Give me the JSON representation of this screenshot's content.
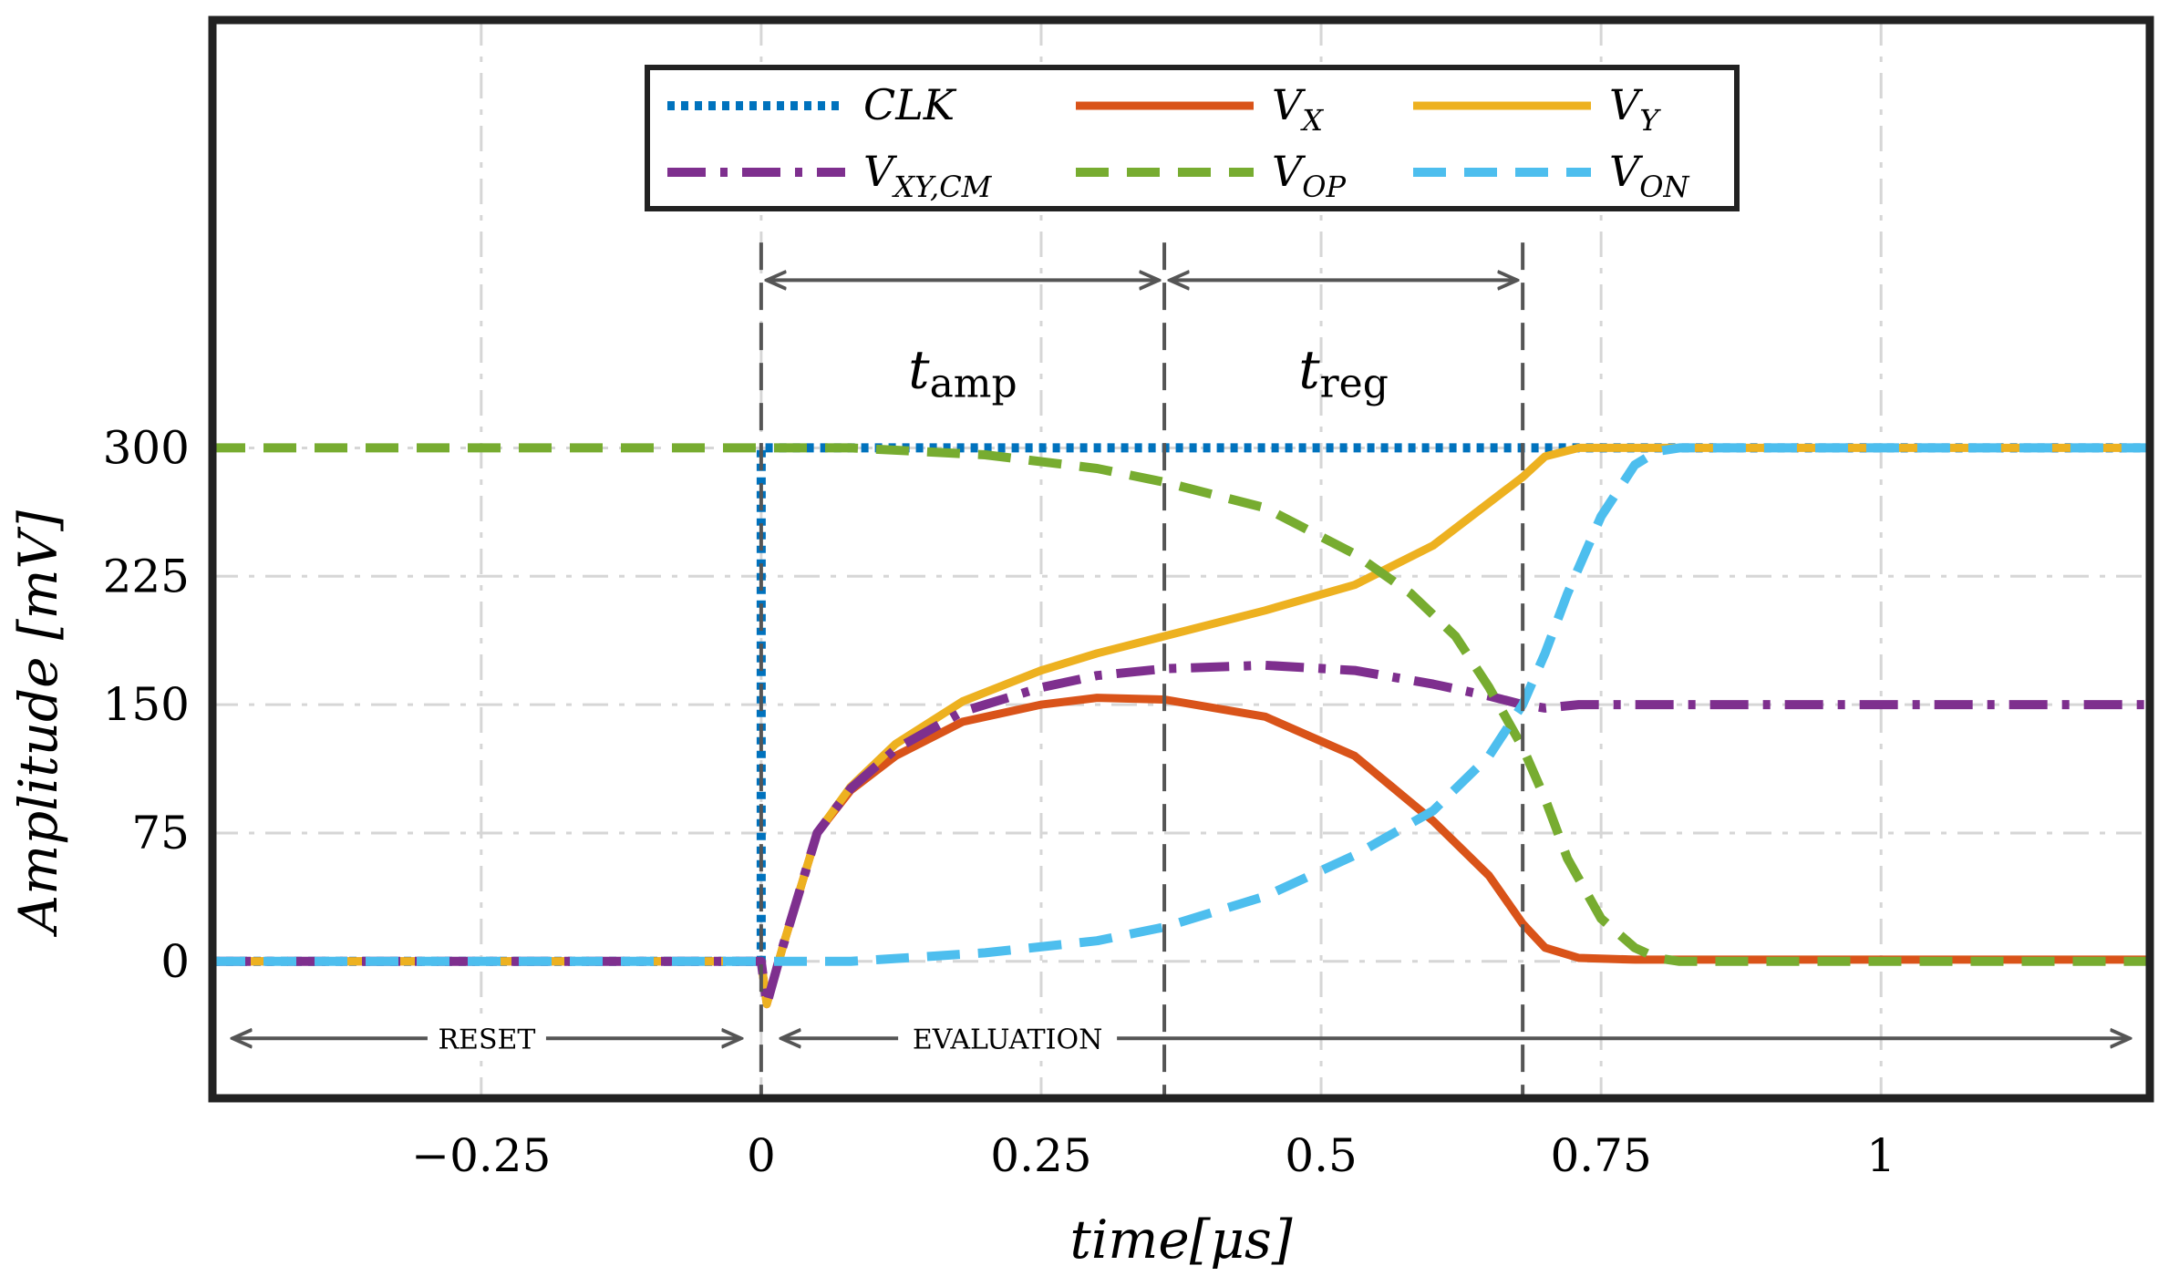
{
  "chart_data": {
    "type": "line",
    "xlabel": "time[μs]",
    "ylabel": "Amplitude [mV]",
    "xlim": [
      -0.49,
      1.24
    ],
    "ylim": [
      -80,
      550
    ],
    "xticks": [
      -0.25,
      0,
      0.25,
      0.5,
      0.75,
      1
    ],
    "xtick_labels": [
      "−0.25",
      "0",
      "0.25",
      "0.5",
      "0.75",
      "1"
    ],
    "yticks": [
      0,
      75,
      150,
      225,
      300
    ],
    "ytick_labels": [
      "0",
      "75",
      "150",
      "225",
      "300"
    ],
    "grid": true,
    "legend_position": "top",
    "series": [
      {
        "name": "CLK",
        "color": "#0072BD",
        "style": "dotted",
        "x": [
          -0.49,
          0.0,
          0.0,
          1.24
        ],
        "y": [
          0,
          0,
          300,
          300
        ]
      },
      {
        "name": "V_X",
        "color": "#D95319",
        "style": "solid",
        "x": [
          -0.49,
          0.0,
          0.005,
          0.02,
          0.05,
          0.08,
          0.12,
          0.18,
          0.25,
          0.3,
          0.36,
          0.45,
          0.53,
          0.6,
          0.65,
          0.68,
          0.7,
          0.73,
          0.78,
          1.24
        ],
        "y": [
          0,
          0,
          -25,
          10,
          75,
          100,
          120,
          140,
          150,
          154,
          153,
          143,
          120,
          82,
          50,
          22,
          8,
          2,
          1,
          1
        ]
      },
      {
        "name": "V_Y",
        "color": "#EDB120",
        "style": "solid",
        "x": [
          -0.49,
          0.0,
          0.005,
          0.02,
          0.05,
          0.08,
          0.12,
          0.18,
          0.25,
          0.3,
          0.36,
          0.45,
          0.53,
          0.6,
          0.65,
          0.68,
          0.7,
          0.73,
          0.78,
          1.24
        ],
        "y": [
          0,
          0,
          -25,
          10,
          75,
          102,
          127,
          152,
          170,
          180,
          190,
          205,
          220,
          243,
          268,
          283,
          295,
          300,
          300,
          300
        ]
      },
      {
        "name": "V_XY,CM",
        "color": "#7E2F8E",
        "style": "dashdot",
        "x": [
          -0.49,
          0.0,
          0.005,
          0.02,
          0.05,
          0.08,
          0.12,
          0.18,
          0.25,
          0.3,
          0.36,
          0.45,
          0.53,
          0.6,
          0.65,
          0.68,
          0.7,
          0.73,
          0.78,
          1.24
        ],
        "y": [
          0,
          0,
          -25,
          10,
          75,
          101,
          124,
          146,
          160,
          167,
          171,
          173,
          170,
          162,
          155,
          150,
          148,
          150,
          150,
          150
        ]
      },
      {
        "name": "V_OP",
        "color": "#77AC30",
        "style": "dashed",
        "x": [
          -0.49,
          0.0,
          0.08,
          0.2,
          0.3,
          0.36,
          0.45,
          0.53,
          0.58,
          0.62,
          0.65,
          0.68,
          0.7,
          0.72,
          0.75,
          0.78,
          0.8,
          0.82,
          1.24
        ],
        "y": [
          300,
          300,
          300,
          296,
          288,
          280,
          265,
          238,
          215,
          190,
          160,
          125,
          95,
          60,
          25,
          8,
          2,
          0,
          0
        ]
      },
      {
        "name": "V_ON",
        "color": "#4DBEEE",
        "style": "dashed",
        "x": [
          -0.49,
          0.0,
          0.08,
          0.2,
          0.3,
          0.36,
          0.45,
          0.53,
          0.6,
          0.65,
          0.68,
          0.7,
          0.72,
          0.75,
          0.78,
          0.8,
          0.82,
          1.24
        ],
        "y": [
          0,
          0,
          0,
          5,
          12,
          20,
          38,
          62,
          88,
          120,
          150,
          180,
          215,
          260,
          290,
          298,
          300,
          300
        ]
      }
    ],
    "annotations": {
      "markers": [
        0,
        0.36,
        0.68
      ],
      "t_amp": {
        "label": "t",
        "subscript": "amp",
        "from": 0,
        "to": 0.36
      },
      "t_reg": {
        "label": "t",
        "subscript": "reg",
        "from": 0.36,
        "to": 0.68
      },
      "phases": [
        {
          "label": "RESET",
          "from": -0.49,
          "to": 0
        },
        {
          "label": "EVALUATION",
          "from": 0,
          "to": 1.24
        }
      ]
    }
  },
  "legend": {
    "rows": [
      [
        {
          "base": "CLK",
          "sub": ""
        },
        {
          "base": "V",
          "sub": "X"
        },
        {
          "base": "V",
          "sub": "Y"
        }
      ],
      [
        {
          "base": "V",
          "sub": "XY,CM"
        },
        {
          "base": "V",
          "sub": "OP"
        },
        {
          "base": "V",
          "sub": "ON"
        }
      ]
    ]
  }
}
